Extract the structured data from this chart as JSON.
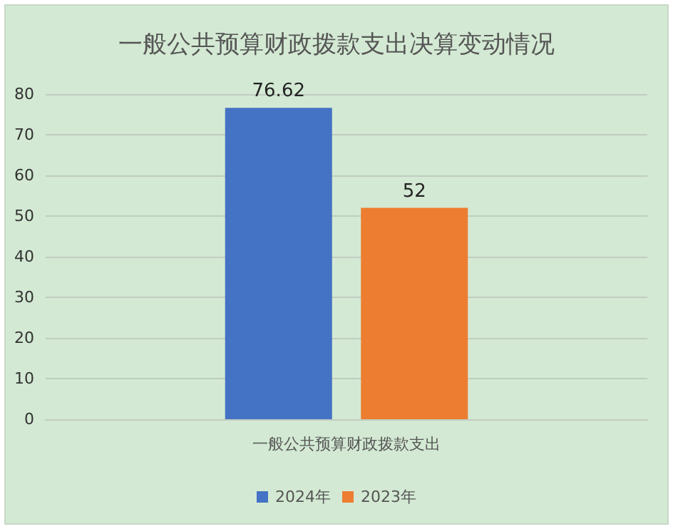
{
  "chart_data": {
    "type": "bar",
    "title": "一般公共预算财政拨款支出决算变动情况",
    "categories": [
      "一般公共预算财政拨款支出"
    ],
    "series": [
      {
        "name": "2024年",
        "color": "#4472c4",
        "values": [
          76.62
        ]
      },
      {
        "name": "2023年",
        "color": "#ed7d31",
        "values": [
          52
        ]
      }
    ],
    "ylim": [
      0,
      80
    ],
    "yticks": [
      0,
      10,
      20,
      30,
      40,
      50,
      60,
      70,
      80
    ],
    "grid": "y",
    "legend": "bottom",
    "data_labels": true
  }
}
